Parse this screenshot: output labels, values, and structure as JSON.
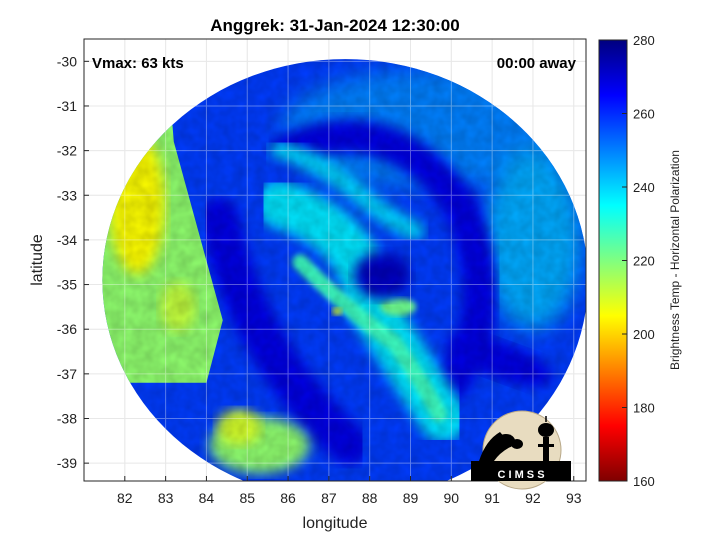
{
  "title": "Anggrek: 31-Jan-2024 12:30:00",
  "corner_left": "Vmax: 63 kts",
  "corner_right": "00:00 away",
  "logo_text": "C I M S S",
  "chart_data": {
    "type": "heatmap",
    "title": "Anggrek: 31-Jan-2024 12:30:00",
    "xlabel": "longitude",
    "ylabel": "latitude",
    "xlim": [
      81.0,
      93.3
    ],
    "ylim": [
      -39.4,
      -29.5
    ],
    "x_ticks": [
      "82",
      "83",
      "84",
      "85",
      "86",
      "87",
      "88",
      "89",
      "90",
      "91",
      "92",
      "93"
    ],
    "y_ticks": [
      "-30",
      "-31",
      "-32",
      "-33",
      "-34",
      "-35",
      "-36",
      "-37",
      "-38",
      "-39"
    ],
    "grid": true,
    "colorbar": {
      "label": "Brightness Temp - Horizontal Polarization",
      "range": [
        160,
        280
      ],
      "ticks": [
        "160",
        "180",
        "200",
        "220",
        "240",
        "260",
        "280"
      ],
      "colormap": [
        "#7f0000",
        "#ff0000",
        "#ff8000",
        "#ffff00",
        "#80ff80",
        "#00ffff",
        "#0080ff",
        "#0000ff",
        "#00007f"
      ]
    },
    "swath": {
      "center": [
        87.4,
        -34.9
      ],
      "radius_lon": 5.95,
      "radius_lat": 4.95
    },
    "features": [
      {
        "name": "warm-band-west",
        "lon": [
          81.2,
          83.8
        ],
        "lat": [
          -37.0,
          -31.0
        ],
        "value": 205
      },
      {
        "name": "warm-band-southwest",
        "lon": [
          83.8,
          86.8
        ],
        "lat": [
          -39.4,
          -37.0
        ],
        "value": 210
      },
      {
        "name": "cold-ring",
        "value": 268
      },
      {
        "name": "rainband-core",
        "lon": [
          86.0,
          89.8
        ],
        "lat": [
          -38.0,
          -34.0
        ],
        "value": 228
      },
      {
        "name": "eye",
        "lon": [
          87.8,
          88.8
        ],
        "lat": [
          -35.5,
          -34.0
        ],
        "value": 272
      }
    ]
  }
}
